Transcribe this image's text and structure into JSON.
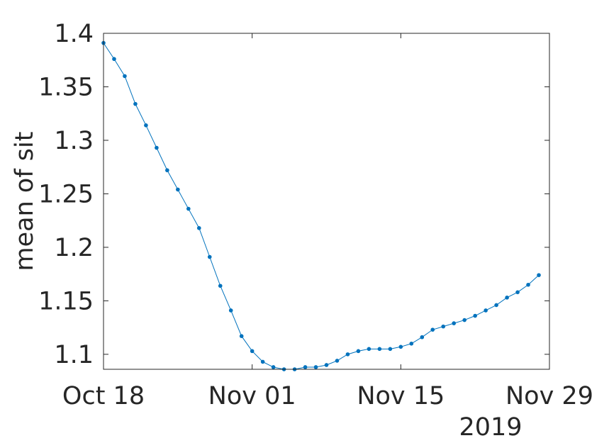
{
  "chart_data": {
    "type": "line",
    "xlabel": "",
    "ylabel": "mean of sit",
    "x_axis_secondary_label": "2019",
    "xlim": [
      "2019-10-18",
      "2019-11-29"
    ],
    "ylim": [
      1.086,
      1.4
    ],
    "x_ticks": [
      {
        "date": "2019-10-18",
        "label": "Oct 18"
      },
      {
        "date": "2019-11-01",
        "label": "Nov 01"
      },
      {
        "date": "2019-11-15",
        "label": "Nov 15"
      },
      {
        "date": "2019-11-29",
        "label": "Nov 29"
      }
    ],
    "y_ticks": [
      {
        "value": 1.1,
        "label": "1.1"
      },
      {
        "value": 1.15,
        "label": "1.15"
      },
      {
        "value": 1.2,
        "label": "1.2"
      },
      {
        "value": 1.25,
        "label": "1.25"
      },
      {
        "value": 1.3,
        "label": "1.3"
      },
      {
        "value": 1.35,
        "label": "1.35"
      },
      {
        "value": 1.4,
        "label": "1.4"
      }
    ],
    "grid": false,
    "color": "#0072bd",
    "x": [
      "2019-10-18",
      "2019-10-19",
      "2019-10-20",
      "2019-10-21",
      "2019-10-22",
      "2019-10-23",
      "2019-10-24",
      "2019-10-25",
      "2019-10-26",
      "2019-10-27",
      "2019-10-28",
      "2019-10-29",
      "2019-10-30",
      "2019-10-31",
      "2019-11-01",
      "2019-11-02",
      "2019-11-03",
      "2019-11-04",
      "2019-11-05",
      "2019-11-06",
      "2019-11-07",
      "2019-11-08",
      "2019-11-09",
      "2019-11-10",
      "2019-11-11",
      "2019-11-12",
      "2019-11-13",
      "2019-11-14",
      "2019-11-15",
      "2019-11-16",
      "2019-11-17",
      "2019-11-18",
      "2019-11-19",
      "2019-11-20",
      "2019-11-21",
      "2019-11-22",
      "2019-11-23",
      "2019-11-24",
      "2019-11-25",
      "2019-11-26",
      "2019-11-27",
      "2019-11-28"
    ],
    "y": [
      1.391,
      1.376,
      1.36,
      1.334,
      1.314,
      1.293,
      1.272,
      1.254,
      1.236,
      1.218,
      1.191,
      1.164,
      1.141,
      1.117,
      1.103,
      1.093,
      1.088,
      1.086,
      1.086,
      1.088,
      1.088,
      1.09,
      1.094,
      1.1,
      1.103,
      1.105,
      1.105,
      1.105,
      1.107,
      1.11,
      1.116,
      1.123,
      1.126,
      1.129,
      1.132,
      1.136,
      1.141,
      1.146,
      1.153,
      1.158,
      1.165,
      1.174
    ]
  }
}
